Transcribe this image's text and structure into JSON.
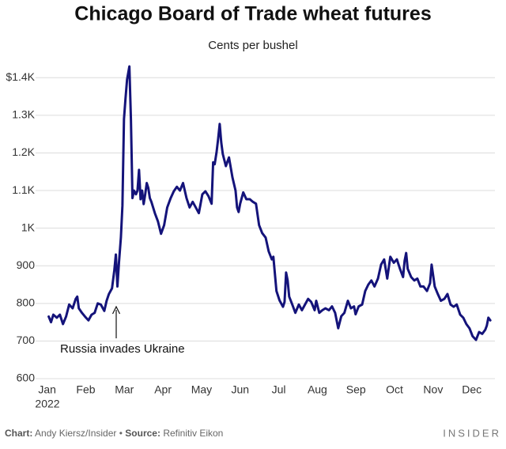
{
  "chart_data": {
    "type": "line",
    "title": "Chicago Board of Trade wheat futures",
    "subtitle": "Cents per bushel",
    "annotation": "Russia invades Ukraine",
    "x_year_label": "2022",
    "footer": {
      "chart_label": "Chart:",
      "chart_author": "Andy Kiersz/Insider",
      "separator": "•",
      "source_label": "Source:",
      "source": "Refinitiv Eikon",
      "logo": "INSIDER"
    },
    "color": "#14137a",
    "grid": true,
    "xlim": [
      -0.3,
      11.6
    ],
    "xticks": [
      {
        "value": 0,
        "label": "Jan"
      },
      {
        "value": 1,
        "label": "Feb"
      },
      {
        "value": 2,
        "label": "Mar"
      },
      {
        "value": 3,
        "label": "Apr"
      },
      {
        "value": 4,
        "label": "May"
      },
      {
        "value": 5,
        "label": "Jun"
      },
      {
        "value": 6,
        "label": "Jul"
      },
      {
        "value": 7,
        "label": "Aug"
      },
      {
        "value": 8,
        "label": "Sep"
      },
      {
        "value": 9,
        "label": "Oct"
      },
      {
        "value": 10,
        "label": "Nov"
      },
      {
        "value": 11,
        "label": "Dec"
      }
    ],
    "ylim": [
      600,
      1430
    ],
    "yticks": [
      600,
      700,
      800,
      900,
      {
        "value": 1000,
        "label": "1K"
      },
      {
        "value": 1100,
        "label": "1.1K"
      },
      {
        "value": 1200,
        "label": "1.2K"
      },
      {
        "value": 1300,
        "label": "1.3K"
      },
      {
        "value": 1400,
        "label": "$1.4K"
      }
    ],
    "x": [
      0.04,
      0.1,
      0.16,
      0.25,
      0.33,
      0.41,
      0.49,
      0.57,
      0.66,
      0.74,
      0.78,
      0.82,
      0.9,
      0.98,
      1.07,
      1.15,
      1.23,
      1.31,
      1.39,
      1.48,
      1.54,
      1.6,
      1.68,
      1.74,
      1.78,
      1.82,
      1.86,
      1.91,
      1.95,
      1.99,
      2.03,
      2.07,
      2.13,
      2.17,
      2.21,
      2.25,
      2.3,
      2.34,
      2.38,
      2.42,
      2.46,
      2.5,
      2.54,
      2.58,
      2.62,
      2.66,
      2.7,
      2.79,
      2.87,
      2.95,
      3.03,
      3.11,
      3.2,
      3.28,
      3.36,
      3.44,
      3.52,
      3.61,
      3.69,
      3.77,
      3.85,
      3.93,
      4.02,
      4.1,
      4.18,
      4.26,
      4.3,
      4.34,
      4.39,
      4.43,
      4.47,
      4.51,
      4.55,
      4.63,
      4.71,
      4.8,
      4.88,
      4.92,
      4.96,
      5.0,
      5.08,
      5.16,
      5.25,
      5.33,
      5.41,
      5.49,
      5.57,
      5.66,
      5.74,
      5.82,
      5.86,
      5.94,
      6.02,
      6.11,
      6.15,
      6.19,
      6.23,
      6.27,
      6.35,
      6.43,
      6.52,
      6.6,
      6.68,
      6.76,
      6.84,
      6.93,
      6.97,
      7.05,
      7.13,
      7.21,
      7.3,
      7.38,
      7.46,
      7.54,
      7.62,
      7.7,
      7.79,
      7.87,
      7.95,
      7.99,
      8.07,
      8.16,
      8.24,
      8.32,
      8.4,
      8.48,
      8.57,
      8.65,
      8.73,
      8.81,
      8.89,
      8.98,
      9.06,
      9.14,
      9.22,
      9.26,
      9.3,
      9.34,
      9.43,
      9.51,
      9.59,
      9.67,
      9.75,
      9.84,
      9.92,
      9.96,
      10.04,
      10.12,
      10.2,
      10.29,
      10.37,
      10.45,
      10.53,
      10.61,
      10.7,
      10.78,
      10.86,
      10.94,
      11.02,
      11.11,
      11.19,
      11.27,
      11.35,
      11.39,
      11.43,
      11.48
    ],
    "values": [
      765,
      750,
      770,
      762,
      770,
      745,
      765,
      797,
      787,
      812,
      818,
      787,
      775,
      765,
      755,
      770,
      775,
      800,
      797,
      780,
      807,
      825,
      840,
      888,
      930,
      845,
      908,
      975,
      1060,
      1290,
      1345,
      1395,
      1430,
      1290,
      1080,
      1100,
      1090,
      1100,
      1155,
      1077,
      1100,
      1064,
      1090,
      1120,
      1107,
      1080,
      1070,
      1040,
      1018,
      985,
      1008,
      1055,
      1080,
      1098,
      1110,
      1100,
      1120,
      1080,
      1055,
      1070,
      1055,
      1040,
      1090,
      1098,
      1085,
      1065,
      1175,
      1170,
      1203,
      1238,
      1277,
      1228,
      1197,
      1165,
      1188,
      1135,
      1100,
      1055,
      1043,
      1065,
      1095,
      1077,
      1077,
      1070,
      1065,
      1008,
      987,
      975,
      938,
      917,
      924,
      833,
      808,
      791,
      804,
      882,
      861,
      818,
      797,
      775,
      797,
      782,
      797,
      812,
      804,
      782,
      807,
      775,
      782,
      787,
      782,
      792,
      775,
      734,
      766,
      775,
      807,
      787,
      792,
      771,
      792,
      797,
      833,
      850,
      861,
      845,
      866,
      903,
      917,
      866,
      924,
      908,
      917,
      892,
      870,
      913,
      934,
      892,
      870,
      861,
      866,
      845,
      845,
      833,
      854,
      903,
      845,
      825,
      807,
      812,
      825,
      797,
      791,
      797,
      770,
      762,
      745,
      734,
      713,
      703,
      724,
      719,
      730,
      741,
      762,
      755
    ]
  }
}
